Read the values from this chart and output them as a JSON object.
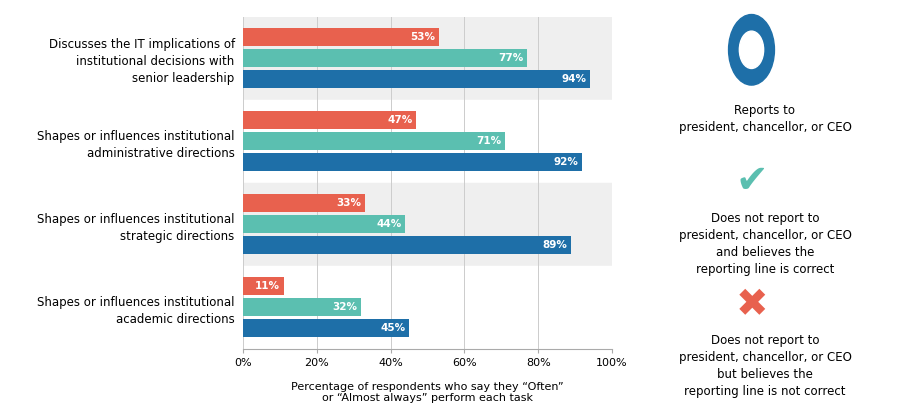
{
  "categories": [
    "Discusses the IT implications of\ninstitutional decisions with\nsenior leadership",
    "Shapes or influences institutional\nadministrative directions",
    "Shapes or influences institutional\nstrategic directions",
    "Shapes or influences institutional\nacademic directions"
  ],
  "series": [
    {
      "label": "Reports to president, chancellor, or CEO",
      "values": [
        94,
        92,
        89,
        45
      ],
      "color": "#1e6fa8"
    },
    {
      "label": "Does not report to president, chancellor, or CEO and believes the reporting line is correct",
      "values": [
        77,
        71,
        44,
        32
      ],
      "color": "#5bbfb0"
    },
    {
      "label": "Does not report to president, chancellor, or CEO but believes the reporting line is not correct",
      "values": [
        53,
        47,
        33,
        11
      ],
      "color": "#e8614e"
    }
  ],
  "bar_height": 0.24,
  "bar_gap": 0.01,
  "xlim": [
    0,
    100
  ],
  "xticks": [
    0,
    20,
    40,
    60,
    80,
    100
  ],
  "xlabel": "Percentage of respondents who say they “Often”\nor “Almost always” perform each task",
  "bg_colors": [
    "#efefef",
    "#ffffff",
    "#efefef",
    "#ffffff"
  ],
  "legend_circle_color": "#1e6fa8",
  "legend_check_color": "#5bbfb0",
  "legend_x_color": "#e8614e",
  "legend_texts": [
    "Reports to\npresident, chancellor, or CEO",
    "Does not report to\npresident, chancellor, or CEO\nand believes the\nreporting line is correct",
    "Does not report to\npresident, chancellor, or CEO\nbut believes the\nreporting line is not correct"
  ]
}
